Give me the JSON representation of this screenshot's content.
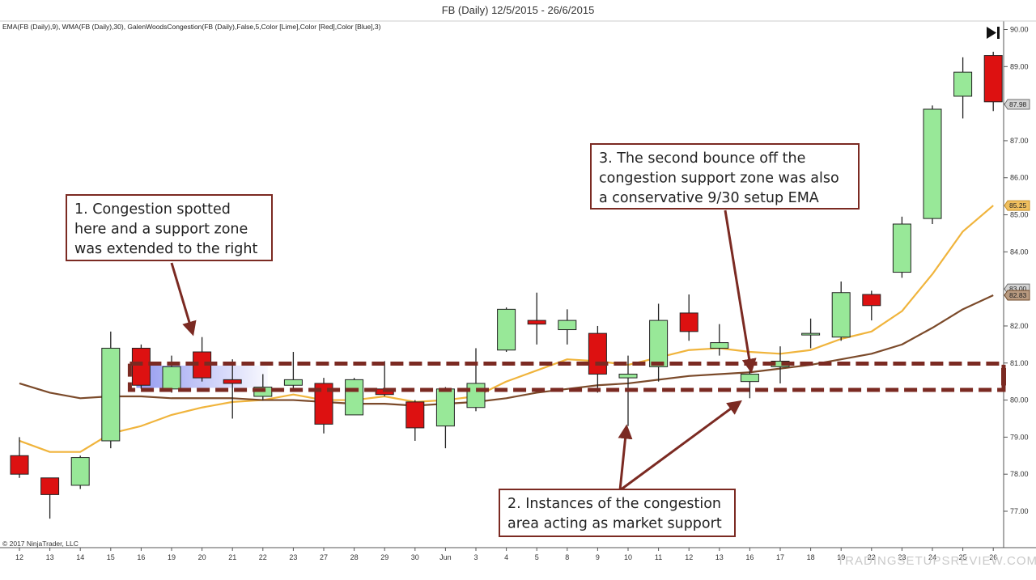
{
  "chart_data": {
    "type": "candlestick",
    "title": "FB (Daily)  12/5/2015 - 26/6/2015",
    "indicator_label": "EMA(FB (Daily),9), WMA(FB (Daily),30), GalenWoodsCongestion(FB (Daily),False,5,Color [Lime],Color [Red],Color [Blue],3)",
    "copyright": "© 2017 NinjaTrader, LLC",
    "watermark": "TRADINGSETUPSREVIEW.COM",
    "ylim": [
      76.3,
      90.3
    ],
    "y_ticks": [
      "77.00",
      "78.00",
      "79.00",
      "80.00",
      "81.00",
      "82.00",
      "83.00",
      "84.00",
      "85.00",
      "86.00",
      "87.00",
      "88.00",
      "89.00",
      "90.00"
    ],
    "x_labels": [
      "12",
      "13",
      "14",
      "15",
      "16",
      "19",
      "20",
      "21",
      "22",
      "23",
      "27",
      "28",
      "29",
      "30",
      "Jun",
      "3",
      "4",
      "5",
      "8",
      "9",
      "10",
      "11",
      "12",
      "13",
      "16",
      "17",
      "18",
      "19",
      "22",
      "23",
      "24",
      "25",
      "26"
    ],
    "candles": [
      {
        "o": 78.5,
        "h": 79.0,
        "l": 77.9,
        "c": 78.0
      },
      {
        "o": 77.9,
        "h": 77.9,
        "l": 76.8,
        "c": 77.45
      },
      {
        "o": 77.7,
        "h": 78.5,
        "l": 77.6,
        "c": 78.45
      },
      {
        "o": 78.9,
        "h": 81.85,
        "l": 78.7,
        "c": 81.4
      },
      {
        "o": 81.4,
        "h": 81.5,
        "l": 80.3,
        "c": 80.4
      },
      {
        "o": 80.3,
        "h": 81.2,
        "l": 80.2,
        "c": 80.9
      },
      {
        "o": 81.3,
        "h": 81.7,
        "l": 80.5,
        "c": 80.6
      },
      {
        "o": 80.55,
        "h": 81.1,
        "l": 79.5,
        "c": 80.45
      },
      {
        "o": 80.1,
        "h": 80.7,
        "l": 80.0,
        "c": 80.35
      },
      {
        "o": 80.4,
        "h": 81.3,
        "l": 80.3,
        "c": 80.55
      },
      {
        "o": 80.45,
        "h": 80.6,
        "l": 79.1,
        "c": 79.35
      },
      {
        "o": 79.6,
        "h": 80.6,
        "l": 79.6,
        "c": 80.55
      },
      {
        "o": 80.3,
        "h": 81.05,
        "l": 80.1,
        "c": 80.15
      },
      {
        "o": 79.95,
        "h": 80.0,
        "l": 78.9,
        "c": 79.25
      },
      {
        "o": 79.3,
        "h": 80.35,
        "l": 78.7,
        "c": 80.3
      },
      {
        "o": 79.8,
        "h": 81.4,
        "l": 79.7,
        "c": 80.45
      },
      {
        "o": 81.35,
        "h": 82.5,
        "l": 81.3,
        "c": 82.45
      },
      {
        "o": 82.15,
        "h": 82.9,
        "l": 81.5,
        "c": 82.05
      },
      {
        "o": 81.9,
        "h": 82.45,
        "l": 81.5,
        "c": 82.15
      },
      {
        "o": 81.8,
        "h": 82.0,
        "l": 80.2,
        "c": 80.7
      },
      {
        "o": 80.6,
        "h": 81.2,
        "l": 79.3,
        "c": 80.7
      },
      {
        "o": 80.9,
        "h": 82.6,
        "l": 80.5,
        "c": 82.15
      },
      {
        "o": 82.35,
        "h": 82.85,
        "l": 81.6,
        "c": 81.85
      },
      {
        "o": 81.4,
        "h": 82.05,
        "l": 81.2,
        "c": 81.55
      },
      {
        "o": 80.5,
        "h": 80.9,
        "l": 80.05,
        "c": 80.7
      },
      {
        "o": 80.9,
        "h": 81.45,
        "l": 80.45,
        "c": 81.05
      },
      {
        "o": 81.8,
        "h": 82.2,
        "l": 81.4,
        "c": 81.8
      },
      {
        "o": 81.7,
        "h": 83.2,
        "l": 81.6,
        "c": 82.9
      },
      {
        "o": 82.85,
        "h": 82.95,
        "l": 82.15,
        "c": 82.55
      },
      {
        "o": 83.45,
        "h": 84.95,
        "l": 83.3,
        "c": 84.75
      },
      {
        "o": 84.9,
        "h": 87.95,
        "l": 84.75,
        "c": 87.85
      },
      {
        "o": 88.2,
        "h": 89.25,
        "l": 87.6,
        "c": 88.85
      },
      {
        "o": 89.3,
        "h": 89.4,
        "l": 87.8,
        "c": 88.05
      }
    ],
    "series": [
      {
        "values": [
          78.9,
          78.6,
          78.6,
          79.1,
          79.3,
          79.6,
          79.8,
          79.95,
          80.0,
          80.15,
          80.0,
          80.0,
          80.1,
          79.95,
          80.0,
          80.1,
          80.5,
          80.8,
          81.1,
          81.05,
          80.95,
          81.15,
          81.35,
          81.4,
          81.3,
          81.25,
          81.35,
          81.65,
          81.85,
          82.4,
          83.4,
          84.55,
          85.25
        ],
        "color": "#f0b43c"
      },
      {
        "values": [
          80.45,
          80.2,
          80.05,
          80.1,
          80.1,
          80.05,
          80.05,
          80.05,
          80.0,
          80.0,
          79.95,
          79.9,
          79.9,
          79.85,
          79.9,
          79.95,
          80.05,
          80.2,
          80.3,
          80.4,
          80.45,
          80.55,
          80.65,
          80.7,
          80.75,
          80.85,
          80.95,
          81.1,
          81.25,
          81.5,
          81.95,
          82.45,
          82.83
        ],
        "color": "#7b4a2a"
      }
    ],
    "price_badges": [
      {
        "value": 87.98,
        "text": "87.98",
        "bg": "#d4d4d4",
        "border": "#707070"
      },
      {
        "value": 85.25,
        "text": "85.25",
        "bg": "#f0c060",
        "border": "#c8902a"
      },
      {
        "value": 83.0,
        "text": "83.00",
        "bg": "#d4d4d4",
        "border": "#707070"
      },
      {
        "value": 82.83,
        "text": "82.83",
        "bg": "#b89a80",
        "border": "#6f4a2a"
      }
    ],
    "congestion_zone": {
      "top": 80.93,
      "bottom": 80.33,
      "start_index": 4
    },
    "congestion_box": {
      "start_index": 4,
      "end_index": 8,
      "top": 80.93,
      "bottom": 80.33
    },
    "annotations": [
      {
        "lines": [
          "1. Congestion spotted",
          "here and a support zone",
          "was extended to the right"
        ]
      },
      {
        "lines": [
          "2. Instances of the congestion",
          "area acting as market support"
        ]
      },
      {
        "lines": [
          "3. The second bounce off the",
          "congestion support zone was also",
          "a conservative 9/30 setup EMA"
        ]
      }
    ],
    "colors": {
      "up": "#98e898",
      "down": "#dd1111",
      "outline": "#222222",
      "zone": "#7b2a22",
      "annotation_border": "#7b2a22",
      "congestion_box": "#8088ee"
    }
  }
}
